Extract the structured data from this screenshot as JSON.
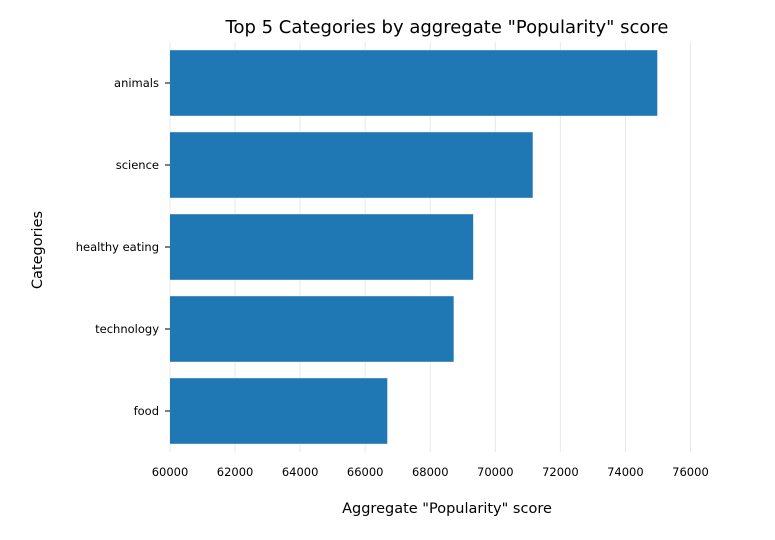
{
  "chart_data": {
    "type": "bar",
    "orientation": "horizontal",
    "title": "Top 5 Categories by aggregate \"Popularity\" score",
    "xlabel": "Aggregate \"Popularity\" score",
    "ylabel": "Categories",
    "categories": [
      "animals",
      "science",
      "healthy eating",
      "technology",
      "food"
    ],
    "values": [
      74980,
      71150,
      69320,
      68720,
      66680
    ],
    "xlim": [
      60000,
      76600
    ],
    "xticks": [
      60000,
      62000,
      64000,
      66000,
      68000,
      70000,
      72000,
      74000,
      76000
    ],
    "grid": "vertical",
    "bar_color": "#1f77b4"
  }
}
